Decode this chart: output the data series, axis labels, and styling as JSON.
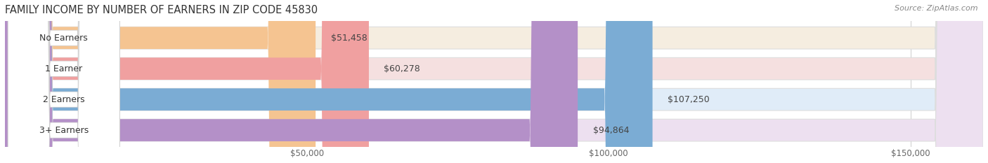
{
  "title": "FAMILY INCOME BY NUMBER OF EARNERS IN ZIP CODE 45830",
  "source": "Source: ZipAtlas.com",
  "categories": [
    "No Earners",
    "1 Earner",
    "2 Earners",
    "3+ Earners"
  ],
  "values": [
    51458,
    60278,
    107250,
    94864
  ],
  "labels": [
    "$51,458",
    "$60,278",
    "$107,250",
    "$94,864"
  ],
  "bar_colors": [
    "#f5c491",
    "#f0a0a0",
    "#7bacd4",
    "#b490c8"
  ],
  "bg_colors": [
    "#f5ede0",
    "#f5e0e0",
    "#e0ecf8",
    "#ede0f0"
  ],
  "xmin": 0,
  "xmax": 162000,
  "xticks": [
    50000,
    100000,
    150000
  ],
  "xtick_labels": [
    "$50,000",
    "$100,000",
    "$150,000"
  ],
  "title_fontsize": 10.5,
  "source_fontsize": 8,
  "bar_label_fontsize": 9,
  "tick_fontsize": 8.5,
  "category_fontsize": 9,
  "figsize": [
    14.06,
    2.33
  ],
  "dpi": 100
}
